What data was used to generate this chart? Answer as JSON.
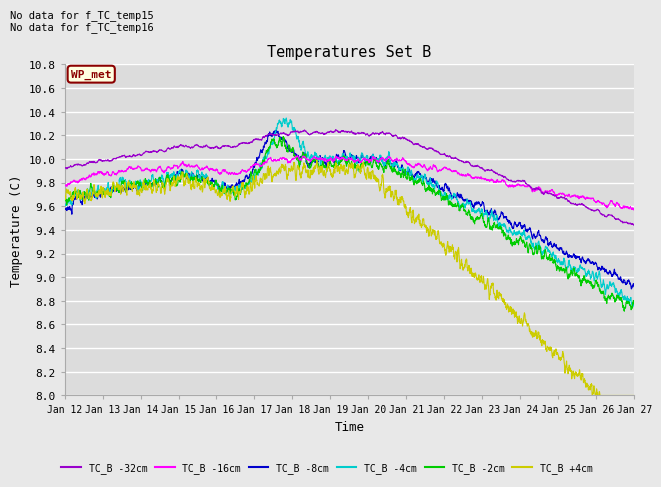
{
  "title": "Temperatures Set B",
  "xlabel": "Time",
  "ylabel": "Temperature (C)",
  "ylim": [
    8.0,
    10.7
  ],
  "x_tick_labels": [
    "Jan 12",
    "Jan 13",
    "Jan 14",
    "Jan 15",
    "Jan 16",
    "Jan 17",
    "Jan 18",
    "Jan 19",
    "Jan 20",
    "Jan 21",
    "Jan 22",
    "Jan 23",
    "Jan 24",
    "Jan 25",
    "Jan 26",
    "Jan 27"
  ],
  "annotation_text": "No data for f_TC_temp15\nNo data for f_TC_temp16",
  "wp_met_label": "WP_met",
  "series_colors": {
    "TC_B -32cm": "#9900cc",
    "TC_B -16cm": "#ff00ff",
    "TC_B -8cm": "#0000cc",
    "TC_B -4cm": "#00cccc",
    "TC_B -2cm": "#00cc00",
    "TC_B +4cm": "#cccc00"
  },
  "background_color": "#dcdcdc",
  "grid_color": "#ffffff",
  "fig_bg": "#e8e8e8"
}
